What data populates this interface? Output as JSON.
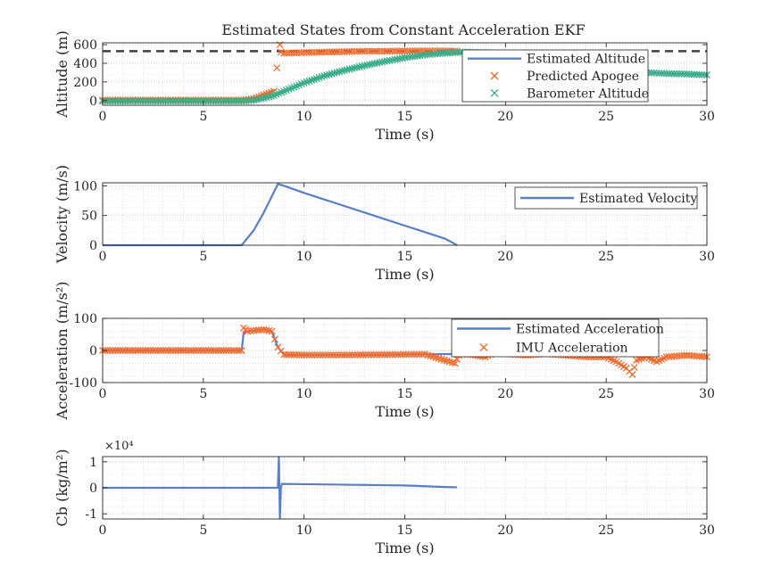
{
  "figure": {
    "title": "Estimated States from Constant Acceleration EKF"
  },
  "colors": {
    "estimate": "#5b7fc4",
    "marker": "#f26a2c",
    "barometer": "#3aae8a",
    "reference": "#404040",
    "grid": "#d0d0d0",
    "axis": "#262626"
  },
  "chart_data": [
    {
      "type": "line",
      "title": "Estimated States from Constant Acceleration EKF",
      "xlabel": "Time (s)",
      "ylabel": "Altitude (m)",
      "xlim": [
        0,
        30
      ],
      "ylim": [
        -50,
        620
      ],
      "xticks": [
        "0",
        "5",
        "10",
        "15",
        "20",
        "25",
        "30"
      ],
      "yticks": [
        "0",
        "200",
        "400",
        "600"
      ],
      "grid": true,
      "legend_position": "top-right",
      "reference_line": {
        "y": 530,
        "style": "dashed"
      },
      "series": [
        {
          "name": "Estimated Altitude",
          "style": "line",
          "x": [
            0,
            7,
            7.5,
            8,
            8.5,
            9,
            10,
            11,
            12,
            13,
            14,
            15,
            16,
            17,
            18,
            19,
            20,
            21,
            22,
            23,
            24,
            25,
            26,
            27,
            28,
            29,
            30
          ],
          "y": [
            0,
            0,
            5,
            25,
            55,
            100,
            190,
            265,
            325,
            375,
            420,
            460,
            490,
            510,
            520,
            515,
            505,
            480,
            450,
            420,
            385,
            345,
            315,
            300,
            290,
            285,
            280
          ]
        },
        {
          "name": "Predicted Apogee",
          "style": "x-marker",
          "x": [
            0,
            1,
            2,
            3,
            4,
            5,
            6,
            7,
            7.5,
            8,
            8.5,
            8.8,
            8.85,
            9,
            10,
            11,
            12,
            13,
            14,
            15,
            16,
            17,
            17.6
          ],
          "y": [
            5,
            5,
            5,
            5,
            5,
            5,
            5,
            5,
            20,
            60,
            100,
            600,
            520,
            510,
            515,
            520,
            525,
            530,
            530,
            532,
            533,
            533,
            530
          ]
        },
        {
          "name": "Barometer Altitude",
          "style": "x-marker",
          "x": [
            0,
            1,
            2,
            3,
            4,
            5,
            6,
            7,
            7.5,
            8,
            8.5,
            9,
            10,
            11,
            12,
            13,
            14,
            15,
            16,
            17,
            18,
            19,
            20,
            21,
            22,
            23,
            24,
            25,
            26,
            27,
            28,
            29,
            30
          ],
          "y": [
            -5,
            -5,
            -5,
            -5,
            -5,
            -5,
            -5,
            -5,
            5,
            25,
            55,
            100,
            190,
            265,
            325,
            375,
            420,
            460,
            490,
            510,
            520,
            515,
            505,
            480,
            450,
            420,
            385,
            345,
            315,
            300,
            290,
            285,
            275
          ]
        }
      ]
    },
    {
      "type": "line",
      "title": "",
      "xlabel": "Time (s)",
      "ylabel": "Velocity (m/s)",
      "xlim": [
        0,
        30
      ],
      "ylim": [
        0,
        105
      ],
      "xticks": [
        "0",
        "5",
        "10",
        "15",
        "20",
        "25",
        "30"
      ],
      "yticks": [
        "0",
        "50",
        "100"
      ],
      "grid": true,
      "legend_position": "top-right",
      "series": [
        {
          "name": "Estimated Velocity",
          "style": "line",
          "x": [
            0,
            6.9,
            7.5,
            8,
            8.7,
            9,
            10,
            11,
            12,
            13,
            14,
            15,
            16,
            17,
            17.6
          ],
          "y": [
            0,
            0,
            25,
            55,
            103,
            100,
            88,
            77,
            66,
            55,
            44,
            33,
            22,
            11,
            0
          ]
        }
      ]
    },
    {
      "type": "line",
      "title": "",
      "xlabel": "Time (s)",
      "ylabel": "Acceleration (m/s²)",
      "xlim": [
        0,
        30
      ],
      "ylim": [
        -100,
        100
      ],
      "xticks": [
        "0",
        "5",
        "10",
        "15",
        "20",
        "25",
        "30"
      ],
      "yticks": [
        "100",
        "0",
        "-100"
      ],
      "grid": true,
      "legend_position": "top-right",
      "series": [
        {
          "name": "Estimated Acceleration",
          "style": "line",
          "x": [
            0,
            6.9,
            7,
            7.2,
            7.5,
            8,
            8.4,
            8.7,
            9,
            10,
            12,
            14,
            16,
            17.6
          ],
          "y": [
            0,
            0,
            55,
            60,
            62,
            65,
            60,
            10,
            -13,
            -14,
            -14,
            -13,
            -12,
            -11
          ]
        },
        {
          "name": "IMU Acceleration",
          "style": "x-marker",
          "x": [
            0,
            1,
            2,
            3,
            4,
            5,
            6,
            6.9,
            7,
            7.2,
            7.5,
            8,
            8.4,
            8.7,
            9,
            10,
            12,
            14,
            16,
            17.5,
            17.7,
            18,
            19,
            19.5,
            20,
            21,
            22,
            23,
            24,
            25,
            25.5,
            26,
            26.3,
            26.5,
            27,
            27.5,
            28,
            29,
            30
          ],
          "y": [
            0,
            0,
            0,
            0,
            0,
            0,
            0,
            0,
            70,
            60,
            62,
            65,
            60,
            10,
            -13,
            -14,
            -14,
            -13,
            -12,
            -40,
            -15,
            -10,
            -20,
            -5,
            -10,
            -15,
            -10,
            -15,
            -20,
            -20,
            -35,
            -55,
            -75,
            -30,
            -20,
            -35,
            -20,
            -15,
            -20
          ]
        }
      ]
    },
    {
      "type": "line",
      "title": "",
      "xlabel": "Time (s)",
      "ylabel": "Cb (kg/m²)",
      "xlim": [
        0,
        30
      ],
      "ylim": [
        -12000,
        12000
      ],
      "axis_exponent": "×10⁴",
      "xticks": [
        "0",
        "5",
        "10",
        "15",
        "20",
        "25",
        "30"
      ],
      "yticks": [
        "1",
        "0",
        "-1"
      ],
      "grid": true,
      "series": [
        {
          "name": "",
          "style": "line",
          "x": [
            0,
            8.7,
            8.75,
            8.8,
            8.85,
            8.9,
            10,
            12,
            14,
            15,
            16,
            17,
            17.6
          ],
          "y": [
            0,
            0,
            12000,
            -12000,
            0,
            1500,
            1400,
            1200,
            1000,
            900,
            600,
            300,
            200
          ]
        }
      ]
    }
  ]
}
